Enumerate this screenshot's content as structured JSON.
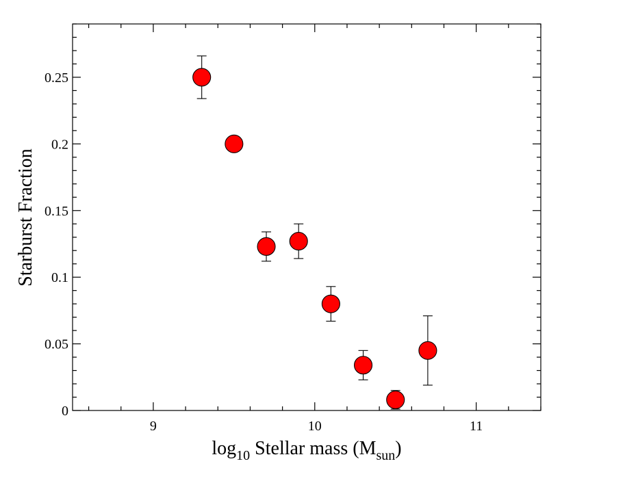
{
  "chart_data": {
    "type": "scatter",
    "title": "",
    "xlabel": {
      "prefix": "log",
      "prefix_sub": "10",
      "main": " Stellar mass (M",
      "main_sub": "sun",
      "suffix": ")"
    },
    "ylabel": "Starburst Fraction",
    "xlim": [
      8.5,
      11.4
    ],
    "ylim": [
      0,
      0.29
    ],
    "x_ticks": [
      9,
      10,
      11
    ],
    "x_tick_labels": [
      "9",
      "10",
      "11"
    ],
    "y_ticks": [
      0,
      0.05,
      0.1,
      0.15,
      0.2,
      0.25
    ],
    "y_tick_labels": [
      "0",
      "0.05",
      "0.1",
      "0.15",
      "0.2",
      "0.25"
    ],
    "marker_color": "#ff0000",
    "series": [
      {
        "name": "Starburst Fraction",
        "points": [
          {
            "x": 9.3,
            "y": 0.25,
            "err_low": 0.234,
            "err_high": 0.266
          },
          {
            "x": 9.5,
            "y": 0.2,
            "err_low": null,
            "err_high": null
          },
          {
            "x": 9.7,
            "y": 0.123,
            "err_low": 0.112,
            "err_high": 0.134
          },
          {
            "x": 9.9,
            "y": 0.127,
            "err_low": 0.114,
            "err_high": 0.14
          },
          {
            "x": 10.1,
            "y": 0.08,
            "err_low": 0.067,
            "err_high": 0.093
          },
          {
            "x": 10.3,
            "y": 0.034,
            "err_low": 0.023,
            "err_high": 0.045
          },
          {
            "x": 10.5,
            "y": 0.008,
            "err_low": 0.001,
            "err_high": 0.015
          },
          {
            "x": 10.7,
            "y": 0.045,
            "err_low": 0.019,
            "err_high": 0.071
          }
        ]
      }
    ]
  }
}
